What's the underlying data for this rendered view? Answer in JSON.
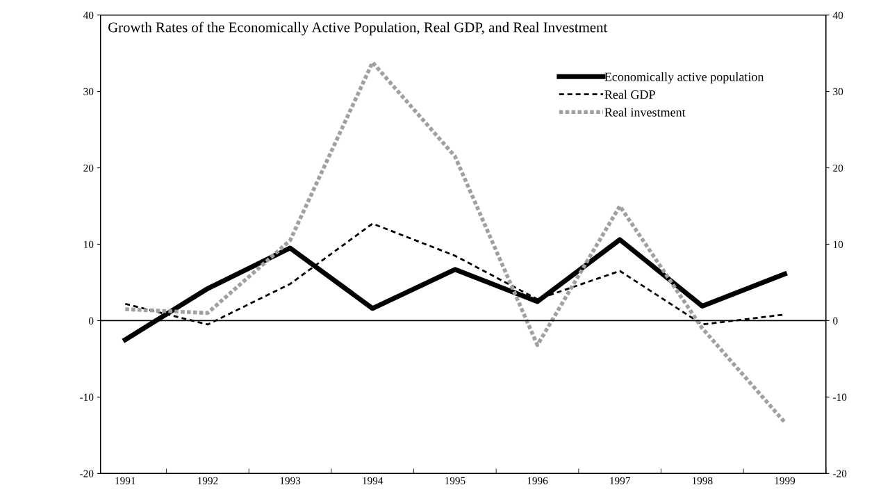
{
  "chart_data": {
    "type": "line",
    "title": "Growth Rates of the Economically Active Population, Real GDP, and Real Investment",
    "categories": [
      "1991",
      "1992",
      "1993",
      "1994",
      "1995",
      "1996",
      "1997",
      "1998",
      "1999"
    ],
    "series": [
      {
        "name": "Economically active population",
        "color": "#000000",
        "line_style": "solid",
        "values": [
          -2.5,
          4.2,
          9.5,
          1.6,
          6.7,
          2.5,
          10.6,
          1.9,
          6.1
        ]
      },
      {
        "name": "Real GDP",
        "color": "#000000",
        "line_style": "dashed",
        "values": [
          2.2,
          -0.5,
          4.8,
          12.7,
          8.5,
          2.8,
          6.5,
          -0.5,
          0.8
        ]
      },
      {
        "name": "Real investment",
        "color": "#a0a0a0",
        "line_style": "dotted",
        "values": [
          1.5,
          1.0,
          10.5,
          33.8,
          21.5,
          -3.2,
          15.0,
          -1.0,
          -13.3
        ]
      }
    ],
    "ylim": [
      -20,
      40
    ],
    "yticks": [
      -20,
      -10,
      0,
      10,
      20,
      30,
      40
    ],
    "y2lim": [
      -20,
      40
    ],
    "y2ticks": [
      -20,
      -10,
      0,
      10,
      20,
      30,
      40
    ],
    "ref_lines": [
      {
        "axis": "y",
        "value": 0,
        "color": "#000000",
        "line_style": "solid"
      }
    ],
    "grid": false,
    "legend": "top right"
  }
}
